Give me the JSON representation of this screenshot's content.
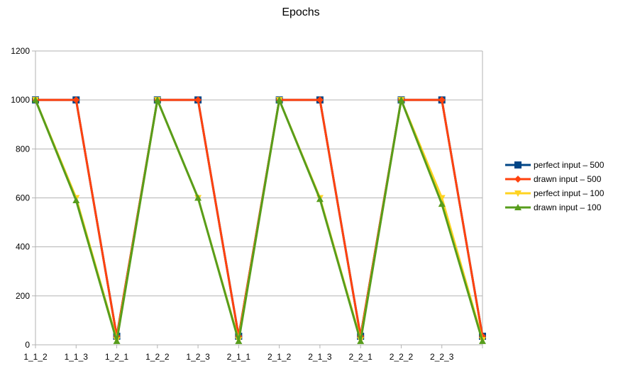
{
  "chart_data": {
    "type": "line",
    "title": "Epochs",
    "xlabel": "",
    "ylabel": "",
    "categories": [
      "1_1_2",
      "1_1_3",
      "1_2_1",
      "1_2_2",
      "1_2_3",
      "2_1_1",
      "2_1_2",
      "2_1_3",
      "2_2_1",
      "2_2_2",
      "2_2_3",
      ""
    ],
    "ylim": [
      0,
      1200
    ],
    "yticks": [
      0,
      200,
      400,
      600,
      800,
      1000,
      1200
    ],
    "grid": true,
    "legend_position": "right",
    "series": [
      {
        "name": "perfect input – 500",
        "color": "#004586",
        "marker": "square",
        "values": [
          1000,
          1000,
          35,
          1000,
          1000,
          35,
          1000,
          1000,
          35,
          1000,
          1000,
          35
        ]
      },
      {
        "name": "drawn input – 500",
        "color": "#ff420e",
        "marker": "diamond",
        "values": [
          1000,
          1000,
          35,
          1000,
          1000,
          35,
          1000,
          1000,
          35,
          1000,
          1000,
          35
        ]
      },
      {
        "name": "perfect input – 100",
        "color": "#ffd320",
        "marker": "triangle-down",
        "values": [
          1000,
          600,
          20,
          1000,
          600,
          20,
          1000,
          600,
          20,
          1000,
          600,
          20
        ]
      },
      {
        "name": "drawn input – 100",
        "color": "#579d1c",
        "marker": "triangle-up",
        "values": [
          1000,
          590,
          15,
          1000,
          600,
          15,
          1000,
          595,
          15,
          1000,
          575,
          15
        ]
      }
    ]
  }
}
